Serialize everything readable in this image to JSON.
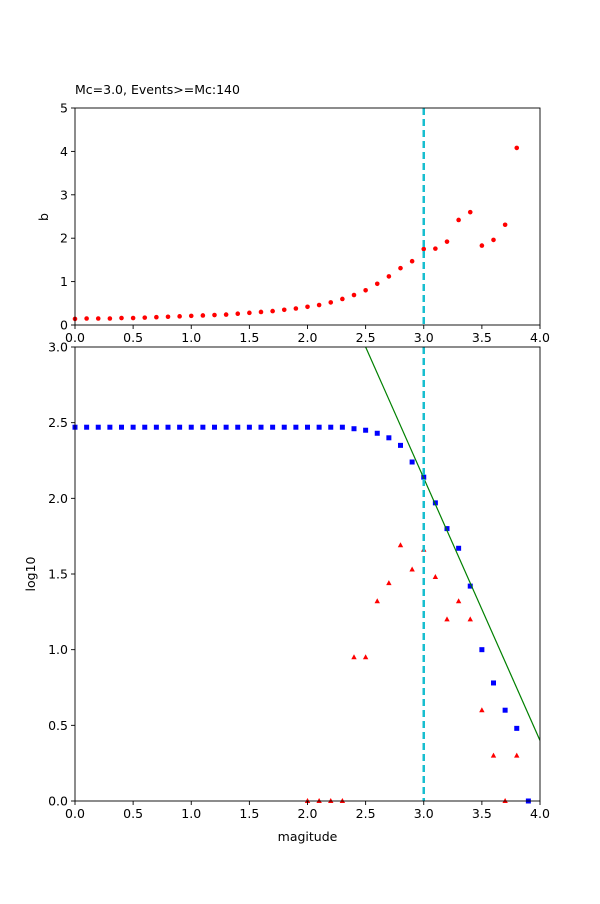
{
  "chart_data": [
    {
      "type": "scatter",
      "title": "Mc=3.0, Events>=Mc:140",
      "xlabel": "",
      "ylabel": "b",
      "xlim": [
        0,
        4
      ],
      "ylim": [
        0,
        5
      ],
      "xticks": [
        "0.0",
        "0.5",
        "1.0",
        "1.5",
        "2.0",
        "2.5",
        "3.0",
        "3.5",
        "4.0"
      ],
      "yticks": [
        "0",
        "1",
        "2",
        "3",
        "4",
        "5"
      ],
      "grid": false,
      "mc_line": {
        "x": 3.0,
        "color": "#17becf"
      },
      "series": [
        {
          "marker": "circle",
          "color": "#ff0000",
          "x": [
            0.0,
            0.1,
            0.2,
            0.3,
            0.4,
            0.5,
            0.6,
            0.7,
            0.8,
            0.9,
            1.0,
            1.1,
            1.2,
            1.3,
            1.4,
            1.5,
            1.6,
            1.7,
            1.8,
            1.9,
            2.0,
            2.1,
            2.2,
            2.3,
            2.4,
            2.5,
            2.6,
            2.7,
            2.8,
            2.9,
            3.0,
            3.1,
            3.2,
            3.3,
            3.4,
            3.5,
            3.6,
            3.7,
            3.8
          ],
          "y": [
            0.14,
            0.15,
            0.15,
            0.15,
            0.16,
            0.16,
            0.17,
            0.18,
            0.19,
            0.2,
            0.21,
            0.22,
            0.23,
            0.24,
            0.26,
            0.28,
            0.3,
            0.32,
            0.35,
            0.38,
            0.42,
            0.46,
            0.52,
            0.6,
            0.69,
            0.8,
            0.95,
            1.12,
            1.31,
            1.47,
            1.75,
            1.76,
            1.92,
            2.42,
            2.6,
            1.83,
            1.96,
            2.31,
            4.08
          ]
        }
      ]
    },
    {
      "type": "scatter",
      "title": "",
      "xlabel": "magitude",
      "ylabel": "log10",
      "xlim": [
        0,
        4
      ],
      "ylim": [
        0,
        3
      ],
      "xticks": [
        "0.0",
        "0.5",
        "1.0",
        "1.5",
        "2.0",
        "2.5",
        "3.0",
        "3.5",
        "4.0"
      ],
      "yticks": [
        "0.0",
        "0.5",
        "1.0",
        "1.5",
        "2.0",
        "2.5",
        "3.0"
      ],
      "grid": false,
      "mc_line": {
        "x": 3.0,
        "color": "#17becf"
      },
      "fit_line": {
        "x": [
          2.5,
          4.0
        ],
        "y": [
          3.0,
          0.4
        ],
        "color": "#008000"
      },
      "series": [
        {
          "marker": "square",
          "color": "#0000ff",
          "x": [
            0.0,
            0.1,
            0.2,
            0.3,
            0.4,
            0.5,
            0.6,
            0.7,
            0.8,
            0.9,
            1.0,
            1.1,
            1.2,
            1.3,
            1.4,
            1.5,
            1.6,
            1.7,
            1.8,
            1.9,
            2.0,
            2.1,
            2.2,
            2.3,
            2.4,
            2.5,
            2.6,
            2.7,
            2.8,
            2.9,
            3.0,
            3.1,
            3.2,
            3.3,
            3.4,
            3.5,
            3.6,
            3.7,
            3.8,
            3.9
          ],
          "y": [
            2.47,
            2.47,
            2.47,
            2.47,
            2.47,
            2.47,
            2.47,
            2.47,
            2.47,
            2.47,
            2.47,
            2.47,
            2.47,
            2.47,
            2.47,
            2.47,
            2.47,
            2.47,
            2.47,
            2.47,
            2.47,
            2.47,
            2.47,
            2.47,
            2.46,
            2.45,
            2.43,
            2.4,
            2.35,
            2.24,
            2.14,
            1.97,
            1.8,
            1.67,
            1.42,
            1.0,
            0.78,
            0.6,
            0.48,
            0.0
          ]
        },
        {
          "marker": "triangle",
          "color": "#ff0000",
          "x": [
            2.0,
            2.1,
            2.2,
            2.3,
            2.4,
            2.5,
            2.6,
            2.7,
            2.8,
            2.9,
            3.0,
            3.1,
            3.2,
            3.3,
            3.4,
            3.5,
            3.6,
            3.7,
            3.8
          ],
          "y": [
            0.0,
            0.0,
            0.0,
            0.0,
            0.95,
            0.95,
            1.32,
            1.44,
            1.69,
            1.53,
            1.66,
            1.48,
            1.2,
            1.32,
            1.2,
            0.6,
            0.3,
            0.0,
            0.3
          ]
        }
      ]
    }
  ]
}
